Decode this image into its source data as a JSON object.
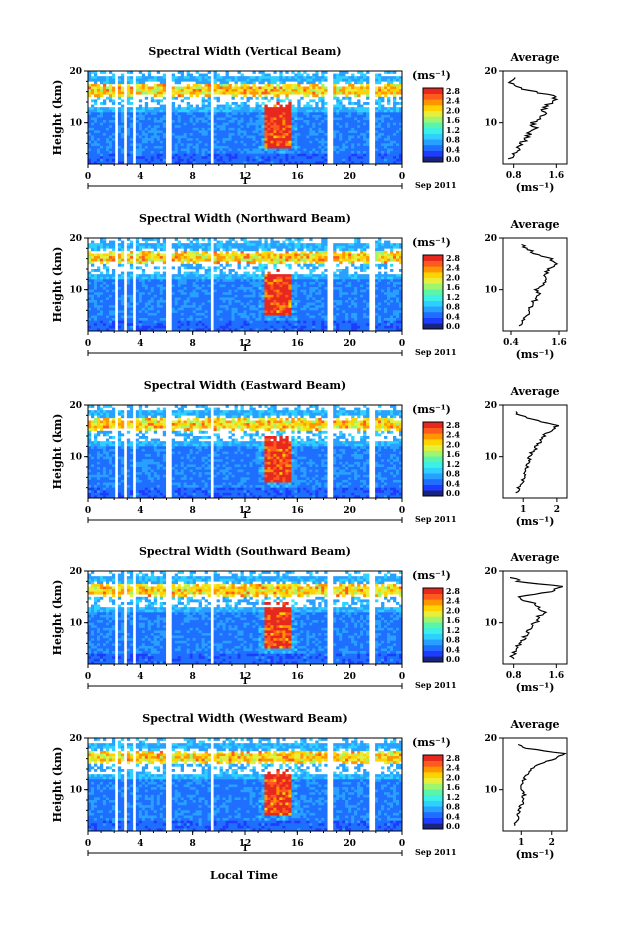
{
  "colorbar": {
    "unit": "(ms⁻¹)",
    "ticks": [
      "2.8",
      "2.4",
      "2.0",
      "1.6",
      "1.2",
      "0.8",
      "0.4",
      "0.0"
    ],
    "colors": [
      "#1a237e",
      "#1e3cff",
      "#1e6eff",
      "#28a0ff",
      "#2ed0ff",
      "#3cf0e6",
      "#5af5aa",
      "#a0f56e",
      "#e6f03c",
      "#ffd200",
      "#ff9600",
      "#ff5a1e",
      "#e6281e"
    ]
  },
  "common": {
    "ylabel": "Height (km)",
    "yticks": [
      "20",
      "10"
    ],
    "xticks": [
      "0",
      "4",
      "8",
      "12",
      "16",
      "20",
      "0"
    ],
    "day_label": "1",
    "date_label": "Sep 2011",
    "xlabel_bottom": "Local Time",
    "profile_title": "Average",
    "profile_unit": "(ms⁻¹)"
  },
  "chart_data": [
    {
      "type": "heatmap",
      "title": "Spectral Width (Vertical Beam)",
      "x_range_hours": [
        0,
        24
      ],
      "y_range_km": [
        2,
        20
      ],
      "profile": {
        "type": "line",
        "xticks": [
          "0.8",
          "1.6"
        ],
        "xlim": [
          0.6,
          1.8
        ],
        "height_km": [
          3,
          4,
          5,
          6,
          7,
          8,
          9,
          10,
          11,
          12,
          13,
          14,
          15,
          16,
          17,
          18,
          19
        ],
        "values": [
          0.75,
          0.8,
          0.9,
          0.95,
          1.05,
          1.1,
          1.2,
          1.15,
          1.3,
          1.4,
          1.35,
          1.55,
          1.6,
          1.2,
          0.8,
          0.75,
          0.9
        ]
      }
    },
    {
      "type": "heatmap",
      "title": "Spectral Width (Northward Beam)",
      "x_range_hours": [
        0,
        24
      ],
      "y_range_km": [
        2,
        20
      ],
      "profile": {
        "type": "line",
        "xticks": [
          "0.4",
          "1.6"
        ],
        "xlim": [
          0.2,
          1.8
        ],
        "height_km": [
          3,
          4,
          5,
          6,
          7,
          8,
          9,
          10,
          11,
          12,
          13,
          14,
          15,
          16,
          17,
          18,
          19
        ],
        "values": [
          0.6,
          0.7,
          0.8,
          0.85,
          0.9,
          1.0,
          1.1,
          1.05,
          1.2,
          1.3,
          1.25,
          1.35,
          1.5,
          1.4,
          1.0,
          0.8,
          0.6
        ]
      }
    },
    {
      "type": "heatmap",
      "title": "Spectral Width (Eastward Beam)",
      "x_range_hours": [
        0,
        24
      ],
      "y_range_km": [
        2,
        20
      ],
      "profile": {
        "type": "line",
        "xticks": [
          "1",
          "2"
        ],
        "xlim": [
          0.4,
          2.3
        ],
        "height_km": [
          3,
          4,
          5,
          6,
          7,
          8,
          9,
          10,
          11,
          12,
          13,
          14,
          15,
          16,
          17,
          18,
          19
        ],
        "values": [
          0.8,
          0.85,
          0.95,
          1.0,
          1.05,
          1.1,
          1.2,
          1.15,
          1.3,
          1.4,
          1.5,
          1.6,
          1.8,
          2.0,
          1.4,
          0.9,
          0.7
        ]
      }
    },
    {
      "type": "heatmap",
      "title": "Spectral Width (Southward Beam)",
      "x_range_hours": [
        0,
        24
      ],
      "y_range_km": [
        2,
        20
      ],
      "profile": {
        "type": "line",
        "xticks": [
          "0.8",
          "1.6"
        ],
        "xlim": [
          0.6,
          1.8
        ],
        "height_km": [
          3,
          4,
          5,
          6,
          7,
          8,
          9,
          10,
          11,
          12,
          13,
          14,
          15,
          16,
          17,
          18,
          19
        ],
        "values": [
          0.75,
          0.8,
          0.85,
          0.9,
          1.0,
          1.05,
          1.15,
          1.2,
          1.25,
          1.35,
          1.3,
          1.1,
          0.85,
          1.5,
          1.7,
          0.9,
          0.75
        ]
      }
    },
    {
      "type": "heatmap",
      "title": "Spectral Width (Westward Beam)",
      "x_range_hours": [
        0,
        24
      ],
      "y_range_km": [
        2,
        20
      ],
      "profile": {
        "type": "line",
        "xticks": [
          "1",
          "2"
        ],
        "xlim": [
          0.4,
          2.5
        ],
        "height_km": [
          3,
          4,
          5,
          6,
          7,
          8,
          9,
          10,
          11,
          12,
          13,
          14,
          15,
          16,
          17,
          18,
          19
        ],
        "values": [
          0.8,
          0.85,
          0.9,
          0.95,
          1.0,
          1.05,
          1.1,
          1.0,
          1.05,
          1.1,
          1.2,
          1.3,
          1.6,
          2.1,
          2.4,
          1.2,
          0.8
        ]
      }
    }
  ]
}
